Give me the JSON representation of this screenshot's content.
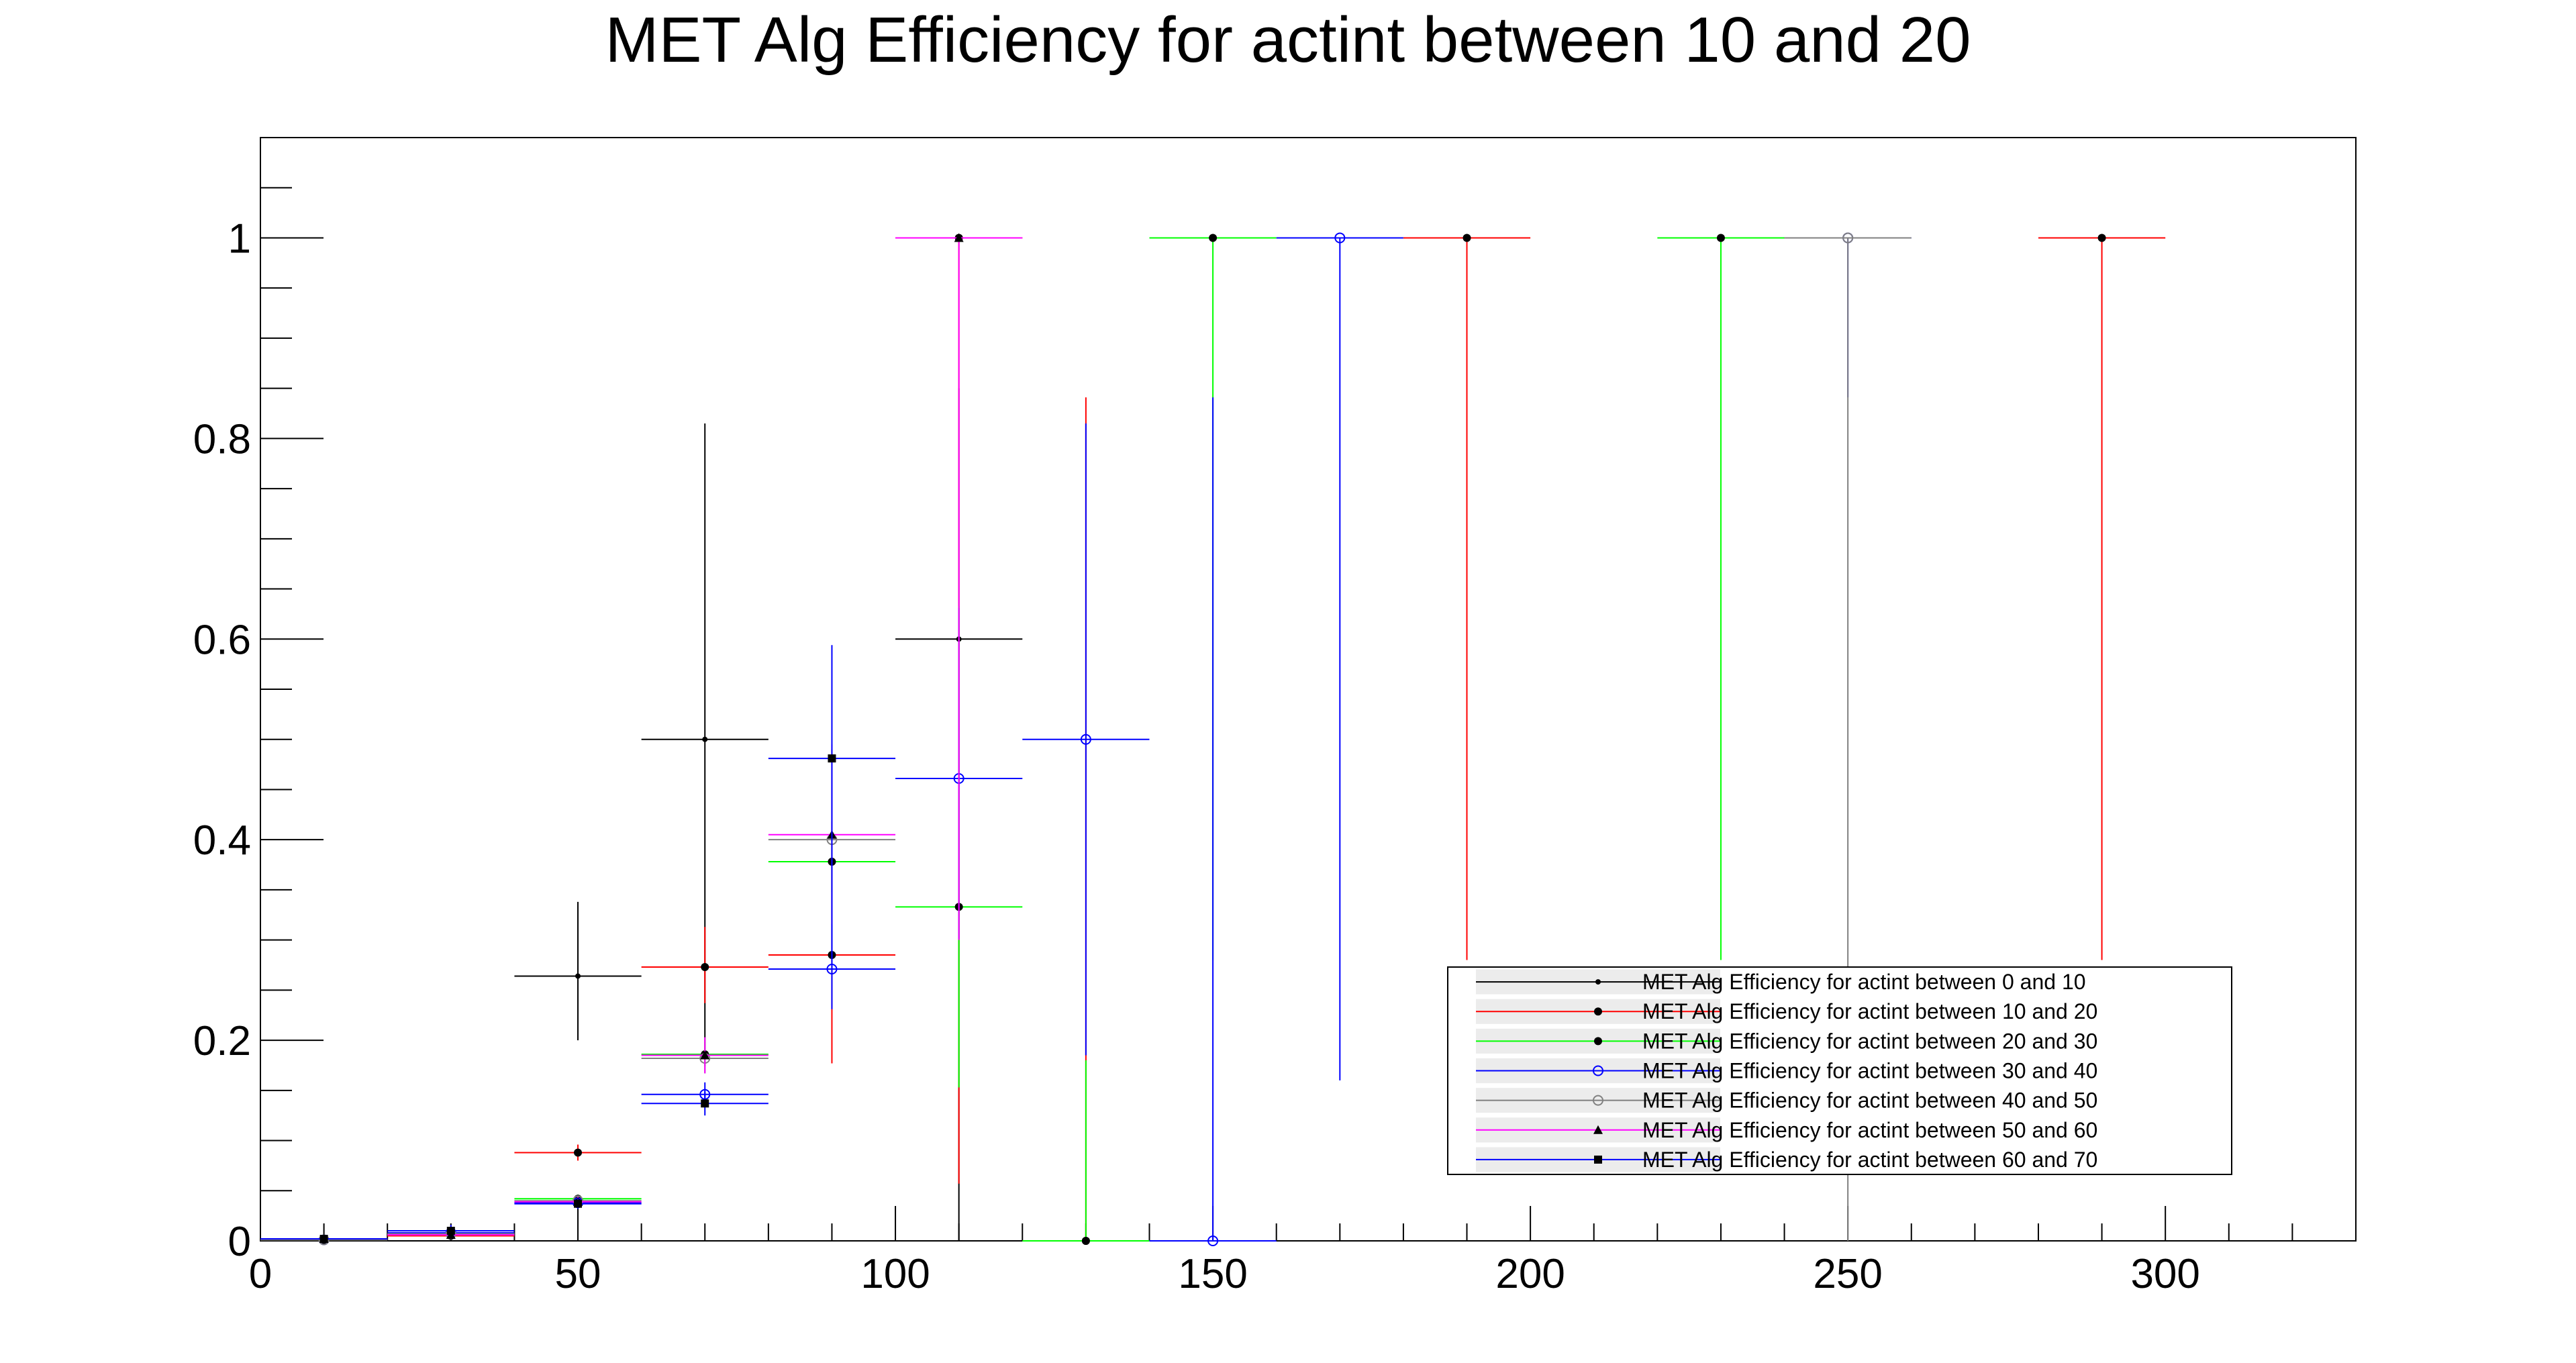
{
  "chart_data": {
    "type": "scatter",
    "title": "MET Alg Efficiency for actint between 10 and 20",
    "xlabel": "",
    "ylabel": "",
    "xlim": [
      0,
      330
    ],
    "ylim": [
      0,
      1.1
    ],
    "x_ticks": [
      0,
      50,
      100,
      150,
      200,
      250,
      300
    ],
    "x_tick_labels": [
      "0",
      "50",
      "100",
      "150",
      "200",
      "250",
      "300"
    ],
    "y_ticks": [
      0,
      0.2,
      0.4,
      0.6,
      0.8,
      1.0
    ],
    "y_tick_labels": [
      "0",
      "0.2",
      "0.4",
      "0.6",
      "0.8",
      "1"
    ],
    "grid": false,
    "legend_position": "bottom-right",
    "series": [
      {
        "name": "MET Alg Efficiency for actint between 0 and 10",
        "color": "#000000",
        "marker": "dot",
        "points": [
          {
            "x": 10,
            "y": 0.002,
            "xerr": 10,
            "yerr_low": 0.002,
            "yerr_high": 0.004
          },
          {
            "x": 30,
            "y": 0.005,
            "xerr": 10,
            "yerr_low": 0.003,
            "yerr_high": 0.006
          },
          {
            "x": 50,
            "y": 0.264,
            "xerr": 10,
            "yerr_low": 0.064,
            "yerr_high": 0.074
          },
          {
            "x": 70,
            "y": 0.5,
            "xerr": 10,
            "yerr_low": 0.31,
            "yerr_high": 0.315
          },
          {
            "x": 110,
            "y": 0.6,
            "xerr": 10,
            "yerr_low": 0.6,
            "yerr_high": 0.25
          }
        ]
      },
      {
        "name": "MET Alg Efficiency for actint between 10 and 20",
        "color": "#ff0000",
        "marker": "filled-circle",
        "points": [
          {
            "x": 10,
            "y": 0.001,
            "xerr": 10,
            "yerr_low": 0.001,
            "yerr_high": 0.003
          },
          {
            "x": 30,
            "y": 0.005,
            "xerr": 10,
            "yerr_low": 0.003,
            "yerr_high": 0.004
          },
          {
            "x": 50,
            "y": 0.088,
            "xerr": 10,
            "yerr_low": 0.008,
            "yerr_high": 0.008
          },
          {
            "x": 70,
            "y": 0.273,
            "xerr": 10,
            "yerr_low": 0.036,
            "yerr_high": 0.04
          },
          {
            "x": 90,
            "y": 0.285,
            "xerr": 10,
            "yerr_low": 0.108,
            "yerr_high": 0.133
          },
          {
            "x": 110,
            "y": 1.0,
            "xerr": 10,
            "yerr_low": 0.943,
            "yerr_high": 0
          },
          {
            "x": 130,
            "y": 0.0,
            "xerr": 10,
            "yerr_low": 0,
            "yerr_high": 0.841
          },
          {
            "x": 190,
            "y": 1.0,
            "xerr": 10,
            "yerr_low": 0.72,
            "yerr_high": 0
          },
          {
            "x": 290,
            "y": 1.0,
            "xerr": 10,
            "yerr_low": 0.72,
            "yerr_high": 0
          }
        ]
      },
      {
        "name": "MET Alg Efficiency for actint between 20 and 30",
        "color": "#00ff00",
        "marker": "filled-circle",
        "points": [
          {
            "x": 10,
            "y": 0.001,
            "xerr": 10,
            "yerr_low": 0.001,
            "yerr_high": 0.002
          },
          {
            "x": 30,
            "y": 0.006,
            "xerr": 10,
            "yerr_low": 0.003,
            "yerr_high": 0.003
          },
          {
            "x": 50,
            "y": 0.042,
            "xerr": 10,
            "yerr_low": 0.004,
            "yerr_high": 0.004
          },
          {
            "x": 70,
            "y": 0.186,
            "xerr": 10,
            "yerr_low": 0.012,
            "yerr_high": 0.012
          },
          {
            "x": 90,
            "y": 0.378,
            "xerr": 10,
            "yerr_low": 0.03,
            "yerr_high": 0.03
          },
          {
            "x": 110,
            "y": 0.333,
            "xerr": 10,
            "yerr_low": 0.18,
            "yerr_high": 0.3
          },
          {
            "x": 130,
            "y": 0.0,
            "xerr": 10,
            "yerr_low": 0,
            "yerr_high": 0.18
          },
          {
            "x": 150,
            "y": 1.0,
            "xerr": 10,
            "yerr_low": 0.72,
            "yerr_high": 0
          },
          {
            "x": 230,
            "y": 1.0,
            "xerr": 10,
            "yerr_low": 0.72,
            "yerr_high": 0
          }
        ]
      },
      {
        "name": "MET Alg Efficiency for actint between 30 and 40",
        "color": "#0000ff",
        "marker": "open-circle",
        "points": [
          {
            "x": 10,
            "y": 0.001,
            "xerr": 10,
            "yerr_low": 0.001,
            "yerr_high": 0.002
          },
          {
            "x": 30,
            "y": 0.008,
            "xerr": 10,
            "yerr_low": 0.003,
            "yerr_high": 0.003
          },
          {
            "x": 50,
            "y": 0.038,
            "xerr": 10,
            "yerr_low": 0.004,
            "yerr_high": 0.004
          },
          {
            "x": 70,
            "y": 0.146,
            "xerr": 10,
            "yerr_low": 0.012,
            "yerr_high": 0.012
          },
          {
            "x": 90,
            "y": 0.271,
            "xerr": 10,
            "yerr_low": 0.04,
            "yerr_high": 0.045
          },
          {
            "x": 110,
            "y": 0.461,
            "xerr": 10,
            "yerr_low": 0.16,
            "yerr_high": 0.17
          },
          {
            "x": 130,
            "y": 0.5,
            "xerr": 10,
            "yerr_low": 0.315,
            "yerr_high": 0.315
          },
          {
            "x": 150,
            "y": 0.0,
            "xerr": 10,
            "yerr_low": 0,
            "yerr_high": 0.841
          },
          {
            "x": 170,
            "y": 1.0,
            "xerr": 10,
            "yerr_low": 0.84,
            "yerr_high": 0
          },
          {
            "x": 250,
            "y": 1.0,
            "xerr": 10,
            "yerr_low": 0.159,
            "yerr_high": 0
          }
        ]
      },
      {
        "name": "MET Alg Efficiency for actint between 40 and 50",
        "color": "#808080",
        "marker": "open-circle",
        "points": [
          {
            "x": 10,
            "y": 0.001,
            "xerr": 10,
            "yerr_low": 0.001,
            "yerr_high": 0.002
          },
          {
            "x": 30,
            "y": 0.007,
            "xerr": 10,
            "yerr_low": 0.003,
            "yerr_high": 0.004
          },
          {
            "x": 50,
            "y": 0.04,
            "xerr": 10,
            "yerr_low": 0.005,
            "yerr_high": 0.005
          },
          {
            "x": 70,
            "y": 0.182,
            "xerr": 10,
            "yerr_low": 0.015,
            "yerr_high": 0.015
          },
          {
            "x": 90,
            "y": 0.4,
            "xerr": 10,
            "yerr_low": 0.08,
            "yerr_high": 0.09
          },
          {
            "x": 250,
            "y": 1.0,
            "xerr": 10,
            "yerr_low": 1.0,
            "yerr_high": 0
          }
        ]
      },
      {
        "name": "MET Alg Efficiency for actint between 50 and 60",
        "color": "#ff00ff",
        "marker": "filled-triangle",
        "points": [
          {
            "x": 10,
            "y": 0.002,
            "xerr": 10,
            "yerr_low": 0.002,
            "yerr_high": 0.003
          },
          {
            "x": 30,
            "y": 0.006,
            "xerr": 10,
            "yerr_low": 0.003,
            "yerr_high": 0.004
          },
          {
            "x": 50,
            "y": 0.039,
            "xerr": 10,
            "yerr_low": 0.005,
            "yerr_high": 0.005
          },
          {
            "x": 70,
            "y": 0.185,
            "xerr": 10,
            "yerr_low": 0.018,
            "yerr_high": 0.018
          },
          {
            "x": 90,
            "y": 0.405,
            "xerr": 10,
            "yerr_low": 0.09,
            "yerr_high": 0.09
          },
          {
            "x": 110,
            "y": 1.0,
            "xerr": 10,
            "yerr_low": 0.7,
            "yerr_high": 0
          }
        ]
      },
      {
        "name": "MET Alg Efficiency for actint between 60 and 70",
        "color": "#000000",
        "marker": "filled-square",
        "line_color": "#0000ff",
        "points": [
          {
            "x": 10,
            "y": 0.002,
            "xerr": 10,
            "yerr_low": 0.002,
            "yerr_high": 0.004
          },
          {
            "x": 30,
            "y": 0.01,
            "xerr": 10,
            "yerr_low": 0.004,
            "yerr_high": 0.006
          },
          {
            "x": 50,
            "y": 0.037,
            "xerr": 10,
            "yerr_low": 0.005,
            "yerr_high": 0.005
          },
          {
            "x": 70,
            "y": 0.137,
            "xerr": 10,
            "yerr_low": 0.012,
            "yerr_high": 0.012
          },
          {
            "x": 90,
            "y": 0.481,
            "xerr": 10,
            "yerr_low": 0.21,
            "yerr_high": 0.113
          }
        ]
      }
    ]
  }
}
